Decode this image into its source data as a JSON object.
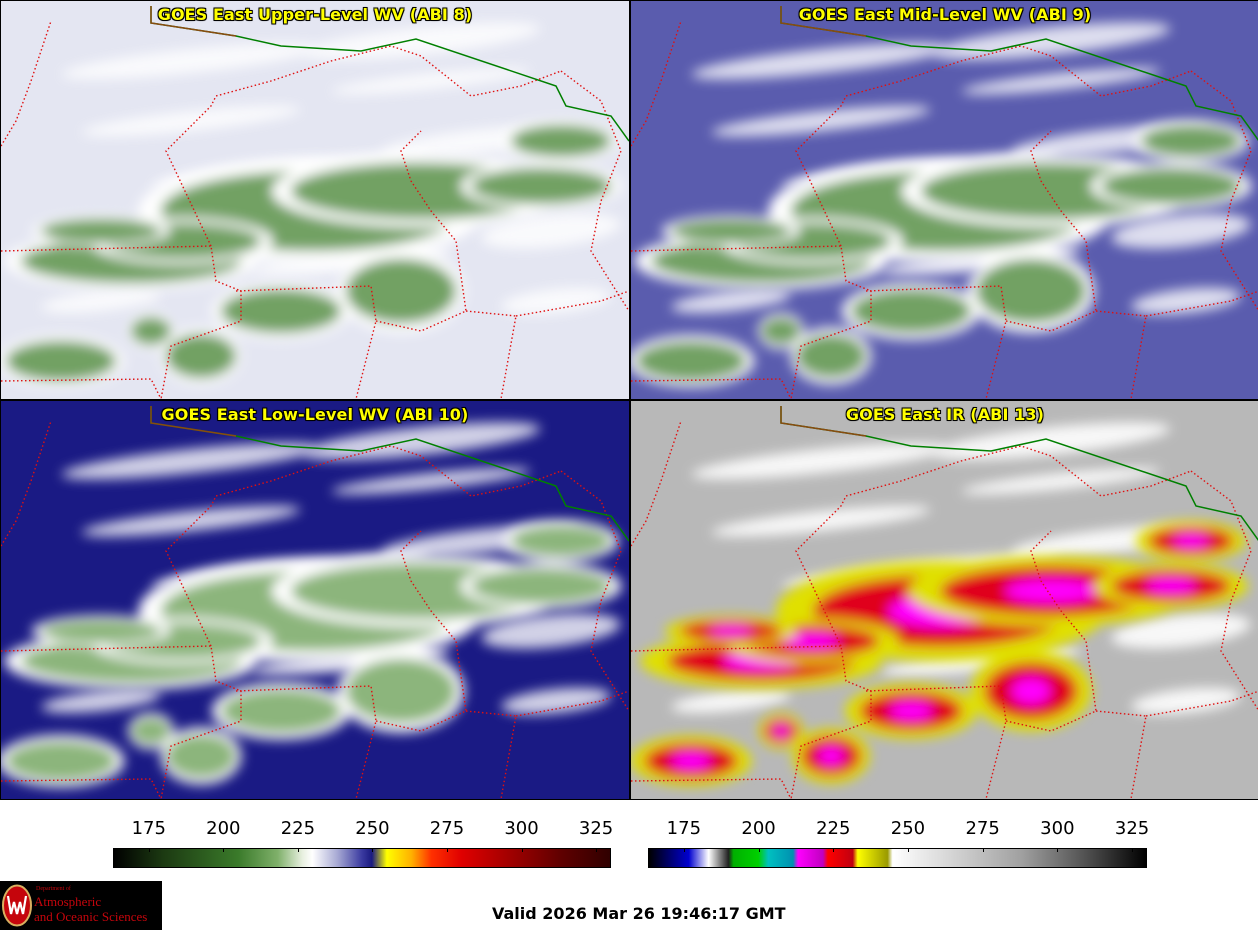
{
  "panels": [
    {
      "id": "p1",
      "title": "GOES East Upper-Level WV (ABI 8)",
      "palette": "wv",
      "background": "#e4e6f2",
      "cloud_color": "#4f8a3c",
      "streak_color": "#ffffff"
    },
    {
      "id": "p2",
      "title": "GOES East Mid-Level WV (ABI 9)",
      "palette": "wv",
      "background": "#5a5cae",
      "cloud_color": "#4f8a3c",
      "streak_color": "#ffffff"
    },
    {
      "id": "p3",
      "title": "GOES East Low-Level WV (ABI 10)",
      "palette": "wv",
      "background": "#1a1a84",
      "cloud_color": "#6fa35a",
      "streak_color": "#ffffff"
    },
    {
      "id": "p4",
      "title": "GOES East IR (ABI 13)",
      "palette": "ir",
      "background": "#b8b8b8",
      "cloud_color": "#e0001a",
      "streak_color": "#ffffff"
    }
  ],
  "colorbars": {
    "wv": {
      "min": 163,
      "max": 330,
      "ticks": [
        "175",
        "200",
        "225",
        "250",
        "275",
        "300",
        "325"
      ]
    },
    "ir": {
      "min": 163,
      "max": 330,
      "ticks": [
        "175",
        "200",
        "225",
        "250",
        "275",
        "300",
        "325"
      ]
    }
  },
  "logo": {
    "line1": "Department of",
    "line2": "Atmospheric",
    "line3": "and Oceanic Sciences",
    "seal": "uw-crest-icon"
  },
  "valid_text": "Valid 2026 Mar 26 19:46:17 GMT",
  "colors": {
    "border_state": "#e01010",
    "border_intl": "#008000",
    "coast": "#8a4a10",
    "title": "#ffff00"
  }
}
